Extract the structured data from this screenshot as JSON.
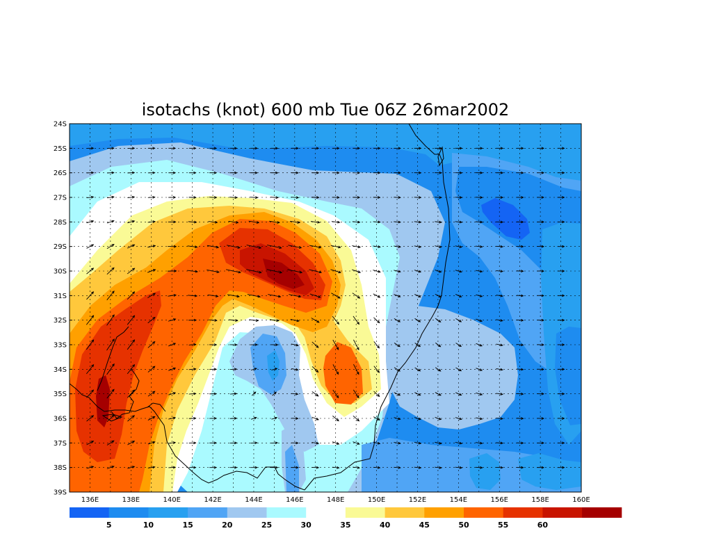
{
  "title": "isotachs (knot) 600 mb Tue 06Z 26mar2002",
  "lat_labels": [
    "24S",
    "25S",
    "26S",
    "27S",
    "28S",
    "29S",
    "30S",
    "31S",
    "32S",
    "33S",
    "34S",
    "35S",
    "36S",
    "37S",
    "38S",
    "39S"
  ],
  "lon_labels": [
    "136E",
    "138E",
    "140E",
    "142E",
    "144E",
    "146E",
    "148E",
    "150E",
    "152E",
    "154E",
    "156E",
    "158E",
    "160E"
  ],
  "colorbar_labels": [
    "5",
    "10",
    "15",
    "20",
    "25",
    "30",
    "35",
    "40",
    "45",
    "50",
    "55",
    "60"
  ],
  "colorbar_colors": [
    "#1464f4",
    "#1e8cf0",
    "#28a0f0",
    "#50a5f5",
    "#a0c8f0",
    "#aafaff",
    "#ffffff",
    "#fafa96",
    "#ffc83c",
    "#ffa000",
    "#ff6400",
    "#e63200",
    "#c81400",
    "#a50000"
  ],
  "chart_data": {
    "type": "heatmap",
    "title": "isotachs (knot) 600 mb Tue 06Z 26mar2002",
    "variable": "isotachs",
    "units": "knot",
    "level": "600 mb",
    "valid_time": "Tue 06Z 26mar2002",
    "lon_range": [
      135,
      160
    ],
    "lat_range": [
      -39,
      -24
    ],
    "contour_levels": [
      5,
      10,
      15,
      20,
      25,
      30,
      35,
      40,
      45,
      50,
      55,
      60
    ],
    "grid": true,
    "wind_maxima": [
      {
        "lon": 145.3,
        "lat": -29.8,
        "speed": 62
      },
      {
        "lon": 136.5,
        "lat": -35.5,
        "speed": 57
      },
      {
        "lon": 148.2,
        "lat": -34.3,
        "speed": 52
      }
    ],
    "wind_minima": [
      {
        "lon": 145.0,
        "lat": -34.0,
        "speed": 12
      },
      {
        "lon": 155.8,
        "lat": -28.0,
        "speed": 8
      },
      {
        "lon": 154.8,
        "lat": -38.0,
        "speed": 12
      }
    ]
  }
}
